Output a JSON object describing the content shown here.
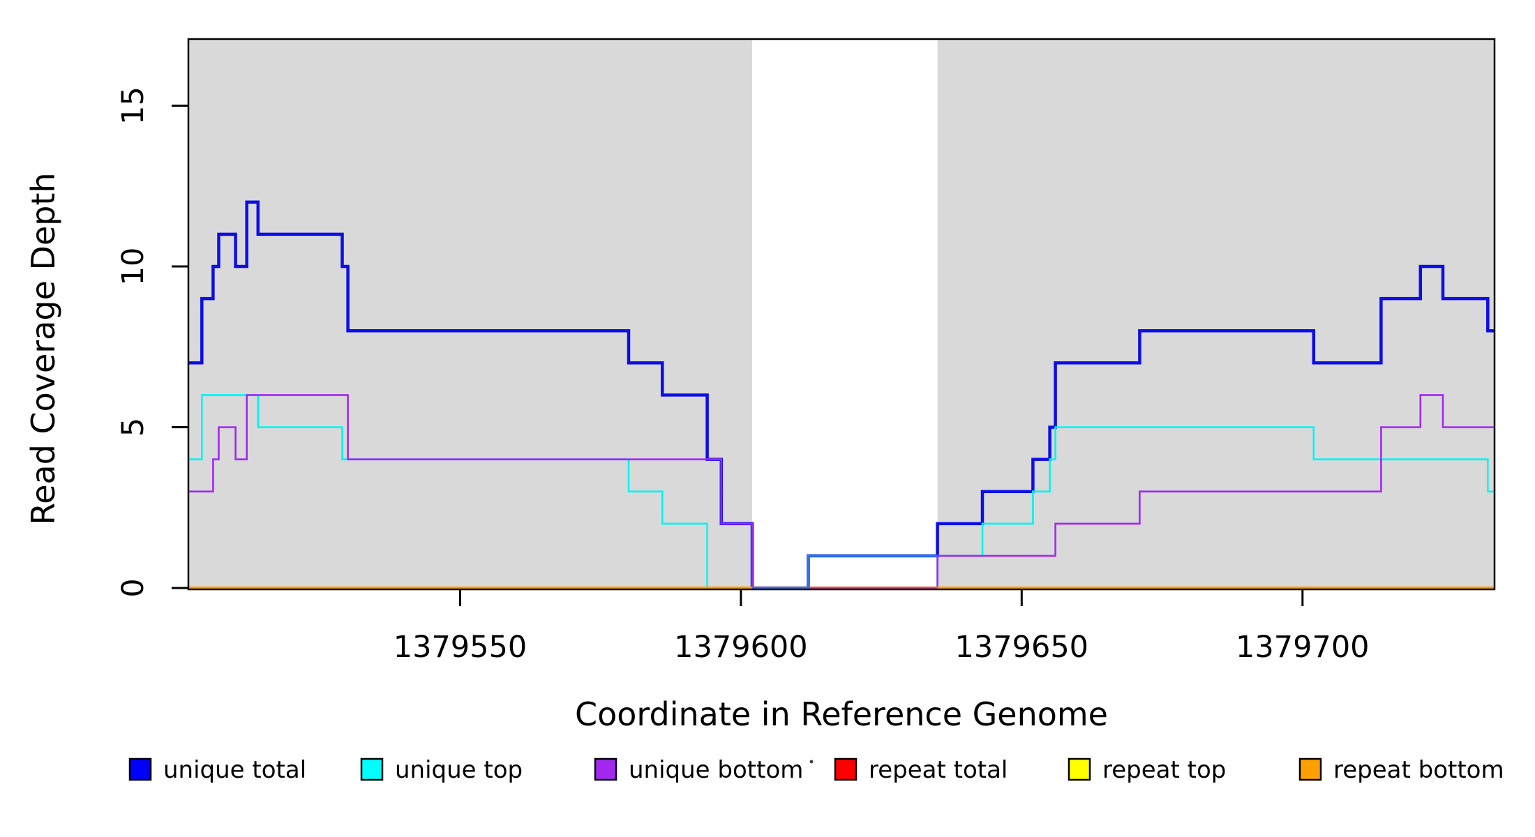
{
  "chart_data": {
    "type": "line",
    "subtype": "step-coverage",
    "title": "",
    "xlabel": "Coordinate in Reference Genome",
    "ylabel": "Read Coverage Depth",
    "x_range": [
      1379501.6,
      1379734.2
    ],
    "y_range": [
      0,
      17.07
    ],
    "x_ticks": [
      1379550,
      1379600,
      1379650,
      1379700
    ],
    "y_ticks": [
      0,
      5,
      10,
      15
    ],
    "grid": "off",
    "background_color": "#ffffff",
    "band_color": "#d9d9d9",
    "axis_color": "#000000",
    "shaded_regions": [
      {
        "name": "left-gray-band",
        "from": 1379501.6,
        "to": 1379602
      },
      {
        "name": "right-gray-band",
        "from": 1379635,
        "to": 1379734.2
      }
    ],
    "series": [
      {
        "name": "unique total",
        "color": "#0d0de8",
        "width": 4.5,
        "steps": [
          [
            1379501.6,
            7
          ],
          [
            1379504,
            9
          ],
          [
            1379506,
            10
          ],
          [
            1379507,
            11
          ],
          [
            1379510,
            10
          ],
          [
            1379512,
            12
          ],
          [
            1379514,
            11
          ],
          [
            1379529,
            10
          ],
          [
            1379530,
            8
          ],
          [
            1379580,
            7
          ],
          [
            1379586,
            6
          ],
          [
            1379594,
            4
          ],
          [
            1379596.5,
            2
          ],
          [
            1379602,
            0
          ],
          [
            1379612,
            1
          ],
          [
            1379635,
            2
          ],
          [
            1379643,
            3
          ],
          [
            1379652,
            4
          ],
          [
            1379655,
            5
          ],
          [
            1379656,
            7
          ],
          [
            1379671,
            8
          ],
          [
            1379702,
            7
          ],
          [
            1379714,
            9
          ],
          [
            1379721,
            10
          ],
          [
            1379725,
            9
          ],
          [
            1379733,
            8
          ]
        ]
      },
      {
        "name": "unique top",
        "color": "#00f5f5",
        "width": 2.6,
        "steps": [
          [
            1379501.6,
            4
          ],
          [
            1379504,
            6
          ],
          [
            1379514,
            5
          ],
          [
            1379529,
            4
          ],
          [
            1379580,
            3
          ],
          [
            1379586,
            2
          ],
          [
            1379594,
            0
          ],
          [
            1379635,
            1
          ],
          [
            1379643,
            2
          ],
          [
            1379652,
            3
          ],
          [
            1379655,
            4
          ],
          [
            1379656,
            5
          ],
          [
            1379702,
            4
          ],
          [
            1379733,
            3
          ]
        ]
      },
      {
        "name": "unique bottom",
        "color": "#a228f0",
        "width": 2.6,
        "steps": [
          [
            1379501.6,
            3
          ],
          [
            1379506,
            4
          ],
          [
            1379507,
            5
          ],
          [
            1379510,
            4
          ],
          [
            1379512,
            6
          ],
          [
            1379530,
            4
          ],
          [
            1379596.5,
            2
          ],
          [
            1379602,
            0
          ],
          [
            1379635,
            1
          ],
          [
            1379656,
            2
          ],
          [
            1379671,
            3
          ],
          [
            1379714,
            5
          ],
          [
            1379721,
            6
          ],
          [
            1379725,
            5
          ]
        ]
      },
      {
        "name": "repeat total",
        "color": "#ff0000",
        "width": 2.6,
        "steps": [
          [
            1379501.6,
            0
          ]
        ]
      },
      {
        "name": "repeat top",
        "color": "#ffff00",
        "width": 3,
        "steps": [
          [
            1379501.6,
            0
          ]
        ]
      },
      {
        "name": "repeat bottom",
        "color": "#ff9d00",
        "width": 4.2,
        "steps": [
          [
            1379501.6,
            0
          ]
        ]
      }
    ],
    "overlays": {
      "gap_zero_line": {
        "from": 1379602,
        "to": 1379635,
        "color": "#dd3d8c",
        "width": 3.4
      },
      "gap_blue_segment": {
        "color": "#2b76e8",
        "width": 3.6,
        "steps": [
          [
            1379602,
            0
          ],
          [
            1379612,
            1
          ]
        ],
        "end": 1379635
      }
    },
    "legend": [
      {
        "label": "unique total",
        "color": "#0000ff"
      },
      {
        "label": "unique top",
        "color": "#00ffff"
      },
      {
        "label": "unique bottom",
        "color": "#a228f0"
      },
      {
        "label": "repeat total",
        "color": "#ff0000"
      },
      {
        "label": "repeat top",
        "color": "#ffff00"
      },
      {
        "label": "repeat bottom",
        "color": "#ffa000"
      }
    ],
    "artifact_dot": {
      "x": 1163,
      "y": 1092,
      "color": "#444444"
    }
  }
}
